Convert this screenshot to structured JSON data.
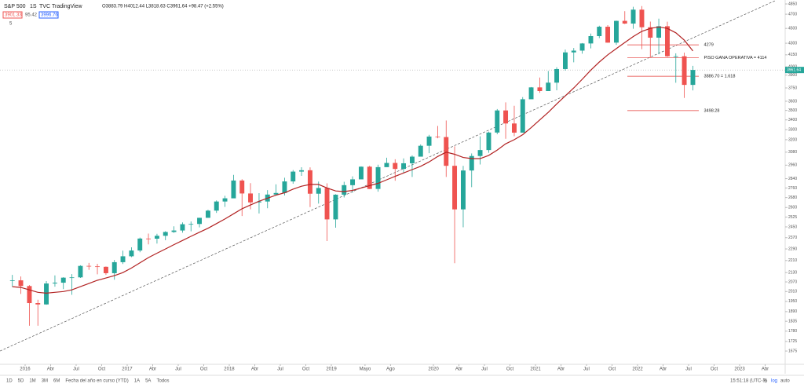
{
  "header": {
    "symbol": "S&P 500",
    "interval": "1S",
    "source": "TVC",
    "provider": "TradingView",
    "ohlc": "O3883.79 H4012.44 L3818.63 C3961.64 +98.47 (+2.55%)",
    "sell": "3901.33",
    "spread": "95.42",
    "buy": "3996.76",
    "indicators": "5"
  },
  "toolbar": {
    "ranges": [
      "1D",
      "5D",
      "1M",
      "3M",
      "6M",
      "Fecha del año en curso (YTD)",
      "1A",
      "5A",
      "Todos"
    ],
    "clock": "15:51:18 (UTC-3)",
    "pct": "%",
    "log": "log",
    "auto": "auto"
  },
  "chart_data": {
    "type": "candlestick",
    "log_scale": true,
    "grid": false,
    "up_color": "#26a69a",
    "down_color": "#ef5350",
    "last_price": 3961.64,
    "xlim": [
      2015.754,
      2023.446
    ],
    "ylim": [
      1616,
      4909
    ],
    "xticks": [
      {
        "value": 2016,
        "label": "2016"
      },
      {
        "value": 2016.25,
        "label": "Abr"
      },
      {
        "value": 2016.5,
        "label": "Jul"
      },
      {
        "value": 2016.75,
        "label": "Oct"
      },
      {
        "value": 2017,
        "label": "2017"
      },
      {
        "value": 2017.25,
        "label": "Abr"
      },
      {
        "value": 2017.5,
        "label": "Jul"
      },
      {
        "value": 2017.75,
        "label": "Oct"
      },
      {
        "value": 2018,
        "label": "2018"
      },
      {
        "value": 2018.25,
        "label": "Abr"
      },
      {
        "value": 2018.5,
        "label": "Jul"
      },
      {
        "value": 2018.75,
        "label": "Oct"
      },
      {
        "value": 2019,
        "label": "2019"
      },
      {
        "value": 2019.33,
        "label": "Mayo"
      },
      {
        "value": 2019.58,
        "label": "Ago"
      },
      {
        "value": 2020,
        "label": "2020"
      },
      {
        "value": 2020.25,
        "label": "Abr"
      },
      {
        "value": 2020.5,
        "label": "Jul"
      },
      {
        "value": 2020.75,
        "label": "Oct"
      },
      {
        "value": 2021,
        "label": "2021"
      },
      {
        "value": 2021.25,
        "label": "Abr"
      },
      {
        "value": 2021.5,
        "label": "Jul"
      },
      {
        "value": 2021.75,
        "label": "Oct"
      },
      {
        "value": 2022,
        "label": "2022"
      },
      {
        "value": 2022.25,
        "label": "Abr"
      },
      {
        "value": 2022.5,
        "label": "Jul"
      },
      {
        "value": 2022.75,
        "label": "Oct"
      },
      {
        "value": 2023,
        "label": "2023"
      },
      {
        "value": 2023.25,
        "label": "Abr"
      }
    ],
    "yticks": [
      1675,
      1725,
      1780,
      1835,
      1890,
      1950,
      2010,
      2070,
      2130,
      2210,
      2290,
      2370,
      2450,
      2525,
      2600,
      2680,
      2760,
      2840,
      2960,
      3080,
      3200,
      3300,
      3400,
      3500,
      3600,
      3750,
      3900,
      4000,
      4150,
      4300,
      4500,
      4700,
      4850
    ],
    "x": [
      2015.875,
      2015.958,
      2016.042,
      2016.125,
      2016.208,
      2016.292,
      2016.375,
      2016.458,
      2016.542,
      2016.625,
      2016.708,
      2016.792,
      2016.875,
      2016.958,
      2017.042,
      2017.125,
      2017.208,
      2017.292,
      2017.375,
      2017.458,
      2017.542,
      2017.625,
      2017.708,
      2017.792,
      2017.875,
      2017.958,
      2018.042,
      2018.125,
      2018.208,
      2018.292,
      2018.375,
      2018.458,
      2018.542,
      2018.625,
      2018.708,
      2018.792,
      2018.875,
      2018.958,
      2019.042,
      2019.125,
      2019.208,
      2019.292,
      2019.375,
      2019.458,
      2019.542,
      2019.625,
      2019.708,
      2019.792,
      2019.875,
      2019.958,
      2020.042,
      2020.125,
      2020.208,
      2020.292,
      2020.375,
      2020.458,
      2020.542,
      2020.625,
      2020.708,
      2020.792,
      2020.875,
      2020.958,
      2021.042,
      2021.125,
      2021.208,
      2021.292,
      2021.375,
      2021.458,
      2021.542,
      2021.625,
      2021.708,
      2021.792,
      2021.875,
      2021.958,
      2022.042,
      2022.125,
      2022.208,
      2022.292,
      2022.375,
      2022.458,
      2022.542
    ],
    "open": [
      2080,
      2080,
      2044,
      1940,
      1932,
      2060,
      2065,
      2097,
      2099,
      2174,
      2171,
      2168,
      2126,
      2199,
      2239,
      2279,
      2364,
      2363,
      2384,
      2412,
      2423,
      2470,
      2472,
      2519,
      2575,
      2648,
      2674,
      2824,
      2714,
      2641,
      2648,
      2705,
      2718,
      2816,
      2902,
      2914,
      2712,
      2760,
      2507,
      2704,
      2784,
      2834,
      2946,
      2752,
      2942,
      2980,
      2926,
      2977,
      3038,
      3141,
      3231,
      3226,
      2954,
      2585,
      2912,
      3044,
      3100,
      3271,
      3500,
      3363,
      3270,
      3622,
      3756,
      3714,
      3811,
      3973,
      4181,
      4204,
      4297,
      4395,
      4523,
      4308,
      4605,
      4567,
      4766,
      4516,
      4374,
      4530,
      4132,
      4132,
      3785
    ],
    "high": [
      2115,
      2105,
      2050,
      1960,
      2075,
      2112,
      2100,
      2120,
      2178,
      2194,
      2188,
      2170,
      2214,
      2278,
      2301,
      2371,
      2400,
      2399,
      2418,
      2454,
      2484,
      2491,
      2519,
      2582,
      2657,
      2695,
      2873,
      2835,
      2801,
      2717,
      2742,
      2791,
      2848,
      2916,
      2941,
      2940,
      2815,
      2800,
      2708,
      2813,
      2860,
      2949,
      2955,
      2964,
      3028,
      3014,
      3022,
      3050,
      3154,
      3248,
      3338,
      3394,
      3136,
      2954,
      3068,
      3233,
      3280,
      3515,
      3588,
      3550,
      3646,
      3760,
      3871,
      3950,
      3995,
      4218,
      4238,
      4302,
      4429,
      4537,
      4546,
      4608,
      4744,
      4808,
      4818,
      4595,
      4637,
      4593,
      4169,
      4178,
      4012
    ],
    "low": [
      2040,
      1995,
      1810,
      1810,
      1930,
      2040,
      2025,
      1990,
      2095,
      2148,
      2119,
      2115,
      2084,
      2187,
      2233,
      2267,
      2322,
      2328,
      2352,
      2405,
      2407,
      2417,
      2446,
      2520,
      2557,
      2605,
      2682,
      2533,
      2585,
      2553,
      2594,
      2698,
      2698,
      2796,
      2864,
      2603,
      2631,
      2346,
      2444,
      2681,
      2722,
      2848,
      2751,
      2729,
      2952,
      2822,
      2892,
      2855,
      3050,
      3070,
      3214,
      2855,
      2192,
      2447,
      2767,
      2966,
      3074,
      3254,
      3209,
      3234,
      3279,
      3633,
      3694,
      3725,
      3723,
      3955,
      4056,
      4165,
      4233,
      4368,
      4306,
      4279,
      4560,
      4495,
      4222,
      4115,
      4157,
      4124,
      3810,
      3637,
      3722
    ],
    "close": [
      2080,
      2044,
      1940,
      1932,
      2060,
      2065,
      2097,
      2099,
      2174,
      2171,
      2168,
      2126,
      2199,
      2239,
      2279,
      2364,
      2363,
      2384,
      2412,
      2423,
      2470,
      2472,
      2519,
      2575,
      2648,
      2674,
      2824,
      2714,
      2641,
      2648,
      2705,
      2718,
      2816,
      2902,
      2914,
      2712,
      2760,
      2507,
      2704,
      2784,
      2834,
      2946,
      2752,
      2942,
      2980,
      2926,
      2977,
      3038,
      3141,
      3231,
      3226,
      2954,
      2585,
      2912,
      3044,
      3100,
      3271,
      3500,
      3363,
      3270,
      3622,
      3756,
      3714,
      3811,
      3973,
      4181,
      4204,
      4297,
      4395,
      4523,
      4308,
      4605,
      4567,
      4766,
      4516,
      4374,
      4530,
      4132,
      4132,
      3785,
      3962
    ],
    "moving_average": {
      "color": "#b22222",
      "values": [
        2040,
        2035,
        2020,
        2005,
        2000,
        2005,
        2010,
        2020,
        2040,
        2060,
        2080,
        2095,
        2110,
        2130,
        2160,
        2195,
        2230,
        2260,
        2290,
        2320,
        2350,
        2380,
        2410,
        2440,
        2475,
        2510,
        2550,
        2590,
        2620,
        2650,
        2675,
        2700,
        2720,
        2750,
        2775,
        2790,
        2790,
        2760,
        2735,
        2730,
        2740,
        2760,
        2780,
        2800,
        2830,
        2860,
        2890,
        2920,
        2950,
        2990,
        3040,
        3080,
        3060,
        3030,
        3020,
        3020,
        3050,
        3100,
        3160,
        3200,
        3250,
        3320,
        3400,
        3480,
        3570,
        3660,
        3750,
        3850,
        3960,
        4060,
        4150,
        4230,
        4310,
        4390,
        4460,
        4500,
        4520,
        4500,
        4440,
        4340,
        4200
      ]
    },
    "trendline": {
      "x": [
        2015.754,
        2023.35
      ],
      "y": [
        1675,
        4900
      ]
    },
    "annotations": [
      {
        "text": "4279",
        "value": 4279
      },
      {
        "text": "PISO GANA OPERATIVA  = 4114",
        "value": 4114
      },
      {
        "text": "3886.70 = 1.618",
        "value": 3886.7
      },
      {
        "text": "3498.28",
        "value": 3498.28
      }
    ]
  }
}
